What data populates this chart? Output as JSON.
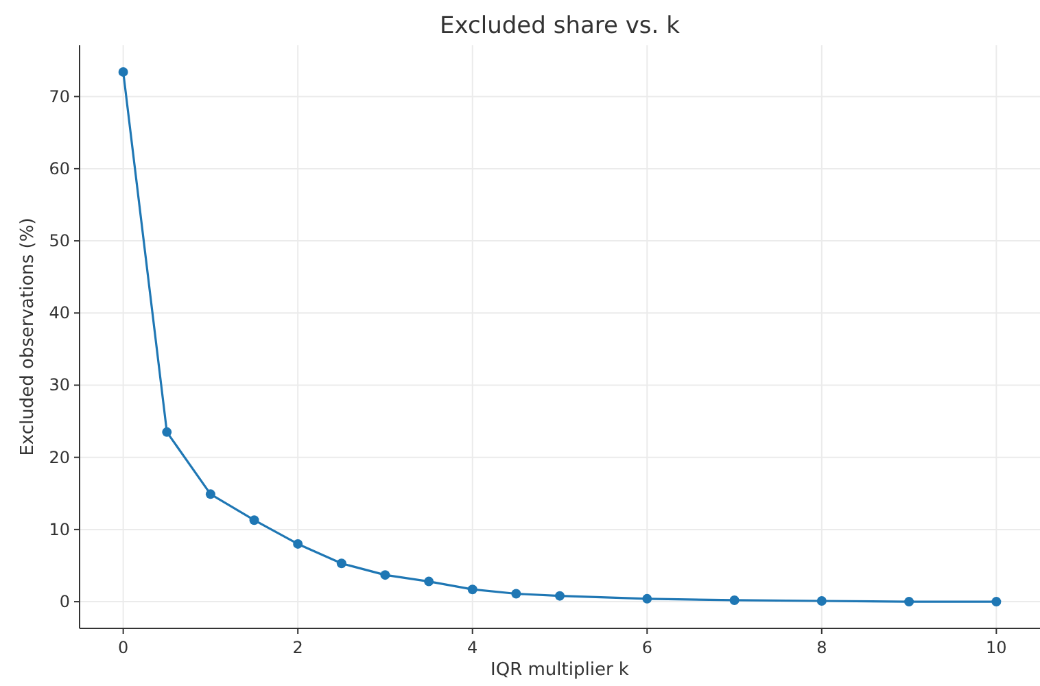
{
  "chart_data": {
    "type": "line",
    "title": "Excluded share vs. k",
    "xlabel": "IQR multiplier k",
    "ylabel": "Excluded observations (%)",
    "x": [
      0,
      0.5,
      1,
      1.5,
      2,
      2.5,
      3,
      3.5,
      4,
      4.5,
      5,
      6,
      7,
      8,
      9,
      10
    ],
    "series": [
      {
        "color": "#1f77b4",
        "values": [
          73.4,
          23.5,
          14.9,
          11.3,
          8.0,
          5.3,
          3.7,
          2.8,
          1.7,
          1.1,
          0.8,
          0.4,
          0.2,
          0.1,
          0,
          0
        ]
      }
    ],
    "xlim": [
      -0.5,
      10.5
    ],
    "ylim": [
      -3.7,
      77.1
    ],
    "xticks": [
      0,
      2,
      4,
      6,
      8,
      10
    ],
    "yticks": [
      0,
      10,
      20,
      30,
      40,
      50,
      60,
      70
    ],
    "grid": true,
    "marker": "circle",
    "line_style": "solid"
  }
}
